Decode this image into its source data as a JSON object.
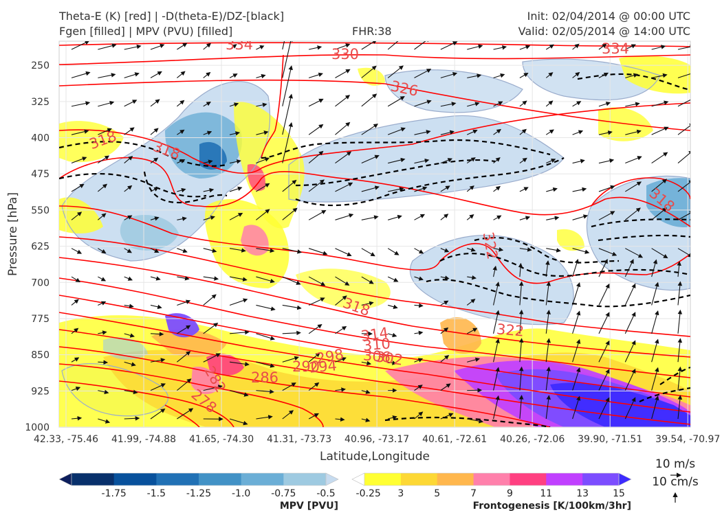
{
  "header": {
    "title_line1": "Theta-E (K) [red] | -D(theta-E)/DZ-[black]",
    "title_line2": "Fgen [filled] | MPV (PVU) [filled]",
    "fhr": "FHR:38",
    "init": "Init: 02/04/2014 @ 00:00 UTC",
    "valid": "Valid: 02/05/2014 @ 14:00 UTC"
  },
  "chart_data": {
    "type": "cross-section",
    "xlabel": "Latitude,Longitude",
    "ylabel": "Pressure [hPa]",
    "y_ticks": [
      250,
      325,
      400,
      475,
      550,
      625,
      700,
      775,
      850,
      925,
      1000
    ],
    "ylim": [
      200,
      1000
    ],
    "x_ticks": [
      "42.33, -75.46",
      "41.99, -74.88",
      "41.65, -74.30",
      "41.31, -73.73",
      "40.96, -73.17",
      "40.61, -72.61",
      "40.26, -72.06",
      "39.90, -71.51",
      "39.54, -70.97"
    ],
    "theta_e_contour_labels": [
      "334",
      "330",
      "334",
      "326",
      "318",
      "318",
      "318",
      "322",
      "318",
      "314",
      "322",
      "310",
      "306",
      "302",
      "298",
      "294",
      "290",
      "286",
      "282",
      "278"
    ],
    "theta_e_color": "#ff0000",
    "ddz_theta_e_color": "#000000",
    "grid": true
  },
  "colorbars": {
    "mpv": {
      "title": "MPV [PVU]",
      "labels": [
        "-1.75",
        "-1.5",
        "-1.25",
        "-1.0",
        "-0.75",
        "-0.5",
        "-0.25"
      ],
      "colors": [
        "#0c1e5c",
        "#08306b",
        "#08519c",
        "#2171b5",
        "#4292c6",
        "#6baed6",
        "#9ecae1",
        "#c6dbef"
      ]
    },
    "fgen": {
      "title": "Frontogenesis [K/100km/3hr]",
      "labels": [
        "3",
        "5",
        "7",
        "9",
        "11",
        "13",
        "15"
      ],
      "colors": [
        "#ffffff",
        "#ffff33",
        "#fdd835",
        "#ffb74d",
        "#ff80ab",
        "#ff4081",
        "#c040ff",
        "#7c4dff",
        "#3d2bff"
      ]
    }
  },
  "wind_legend": {
    "horizontal": "10 m/s",
    "vertical": "10 cm/s"
  }
}
